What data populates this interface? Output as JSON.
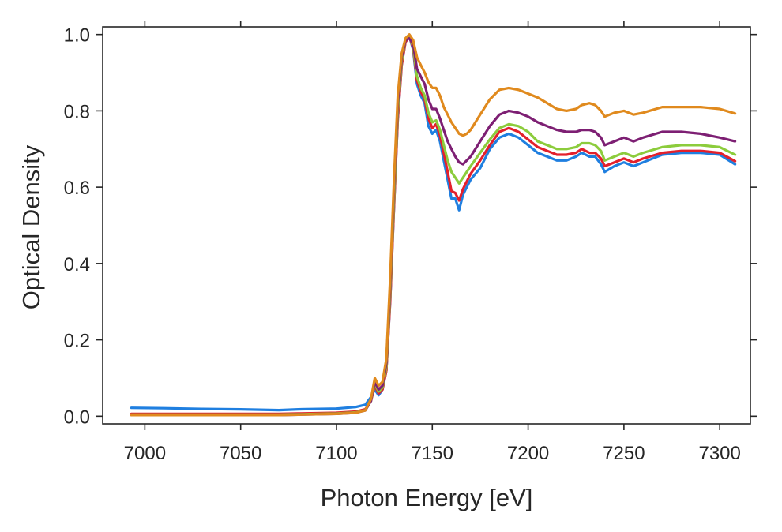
{
  "chart_data": {
    "type": "line",
    "title": "",
    "xlabel": "Photon Energy [eV]",
    "ylabel": "Optical Density",
    "xlim": [
      6978,
      7316
    ],
    "ylim": [
      -0.02,
      1.02
    ],
    "xticks": [
      7000,
      7050,
      7100,
      7150,
      7200,
      7250,
      7300
    ],
    "xtick_labels": [
      "7000",
      "7050",
      "7100",
      "7150",
      "7200",
      "7250",
      "7300"
    ],
    "yticks": [
      0.0,
      0.2,
      0.4,
      0.6,
      0.8,
      1.0
    ],
    "ytick_labels": [
      "0.0",
      "0.2",
      "0.4",
      "0.6",
      "0.8",
      "1.0"
    ],
    "grid": false,
    "legend": "none",
    "series": [
      {
        "name": "blue",
        "color": "#1f7fe0",
        "x": [
          6993,
          7010,
          7030,
          7050,
          7070,
          7080,
          7100,
          7110,
          7115,
          7118,
          7120,
          7122,
          7124,
          7126,
          7128,
          7130,
          7132,
          7134,
          7136,
          7138,
          7140,
          7142,
          7144,
          7146,
          7148,
          7150,
          7152,
          7154,
          7156,
          7158,
          7160,
          7162,
          7164,
          7166,
          7168,
          7170,
          7175,
          7180,
          7185,
          7190,
          7195,
          7200,
          7205,
          7210,
          7215,
          7220,
          7225,
          7228,
          7232,
          7235,
          7238,
          7240,
          7245,
          7250,
          7255,
          7260,
          7270,
          7280,
          7290,
          7300,
          7308
        ],
        "y": [
          0.022,
          0.021,
          0.019,
          0.018,
          0.016,
          0.018,
          0.02,
          0.024,
          0.03,
          0.05,
          0.07,
          0.055,
          0.07,
          0.12,
          0.3,
          0.55,
          0.78,
          0.92,
          0.98,
          0.995,
          0.96,
          0.87,
          0.84,
          0.82,
          0.76,
          0.74,
          0.75,
          0.72,
          0.67,
          0.62,
          0.57,
          0.57,
          0.54,
          0.58,
          0.6,
          0.62,
          0.65,
          0.7,
          0.73,
          0.74,
          0.73,
          0.71,
          0.69,
          0.68,
          0.67,
          0.67,
          0.68,
          0.69,
          0.68,
          0.68,
          0.66,
          0.64,
          0.655,
          0.665,
          0.655,
          0.665,
          0.685,
          0.69,
          0.69,
          0.685,
          0.66
        ]
      },
      {
        "name": "red",
        "color": "#e3202c",
        "x": [
          6993,
          7010,
          7030,
          7050,
          7070,
          7080,
          7100,
          7110,
          7115,
          7118,
          7120,
          7122,
          7124,
          7126,
          7128,
          7130,
          7132,
          7134,
          7136,
          7138,
          7140,
          7142,
          7144,
          7146,
          7148,
          7150,
          7152,
          7154,
          7156,
          7158,
          7160,
          7162,
          7164,
          7166,
          7168,
          7170,
          7175,
          7180,
          7185,
          7190,
          7195,
          7200,
          7205,
          7210,
          7215,
          7220,
          7225,
          7228,
          7232,
          7235,
          7238,
          7240,
          7245,
          7250,
          7255,
          7260,
          7270,
          7280,
          7290,
          7300,
          7308
        ],
        "y": [
          0.006,
          0.006,
          0.006,
          0.006,
          0.006,
          0.007,
          0.009,
          0.012,
          0.018,
          0.04,
          0.08,
          0.06,
          0.07,
          0.12,
          0.3,
          0.55,
          0.78,
          0.92,
          0.98,
          0.995,
          0.965,
          0.88,
          0.85,
          0.83,
          0.78,
          0.755,
          0.765,
          0.735,
          0.69,
          0.64,
          0.59,
          0.585,
          0.565,
          0.595,
          0.615,
          0.635,
          0.67,
          0.71,
          0.745,
          0.755,
          0.745,
          0.725,
          0.705,
          0.695,
          0.685,
          0.685,
          0.69,
          0.7,
          0.69,
          0.69,
          0.675,
          0.655,
          0.665,
          0.675,
          0.665,
          0.675,
          0.69,
          0.695,
          0.695,
          0.69,
          0.668
        ]
      },
      {
        "name": "green",
        "color": "#8ccc3c",
        "x": [
          6993,
          7010,
          7030,
          7050,
          7070,
          7080,
          7100,
          7110,
          7115,
          7118,
          7120,
          7122,
          7124,
          7126,
          7128,
          7130,
          7132,
          7134,
          7136,
          7138,
          7140,
          7142,
          7144,
          7146,
          7148,
          7150,
          7152,
          7154,
          7156,
          7158,
          7160,
          7162,
          7164,
          7166,
          7168,
          7170,
          7175,
          7180,
          7185,
          7190,
          7195,
          7200,
          7205,
          7210,
          7215,
          7220,
          7225,
          7228,
          7232,
          7235,
          7238,
          7240,
          7245,
          7250,
          7255,
          7260,
          7270,
          7280,
          7290,
          7300,
          7308
        ],
        "y": [
          0.004,
          0.004,
          0.004,
          0.004,
          0.004,
          0.005,
          0.007,
          0.01,
          0.016,
          0.04,
          0.085,
          0.065,
          0.075,
          0.13,
          0.32,
          0.57,
          0.8,
          0.93,
          0.985,
          0.995,
          0.97,
          0.89,
          0.86,
          0.84,
          0.795,
          0.77,
          0.775,
          0.75,
          0.71,
          0.67,
          0.64,
          0.625,
          0.61,
          0.625,
          0.64,
          0.655,
          0.69,
          0.725,
          0.755,
          0.765,
          0.76,
          0.745,
          0.72,
          0.71,
          0.7,
          0.7,
          0.705,
          0.715,
          0.715,
          0.71,
          0.695,
          0.67,
          0.68,
          0.69,
          0.68,
          0.69,
          0.705,
          0.71,
          0.71,
          0.705,
          0.685
        ]
      },
      {
        "name": "purple",
        "color": "#7d1f73",
        "x": [
          6993,
          7010,
          7030,
          7050,
          7070,
          7080,
          7100,
          7110,
          7115,
          7118,
          7120,
          7122,
          7124,
          7126,
          7128,
          7130,
          7132,
          7134,
          7136,
          7138,
          7140,
          7142,
          7144,
          7146,
          7148,
          7150,
          7152,
          7154,
          7156,
          7158,
          7160,
          7162,
          7164,
          7166,
          7168,
          7170,
          7175,
          7180,
          7185,
          7190,
          7195,
          7200,
          7205,
          7210,
          7215,
          7220,
          7225,
          7228,
          7232,
          7235,
          7238,
          7240,
          7245,
          7250,
          7255,
          7260,
          7270,
          7280,
          7290,
          7300,
          7308
        ],
        "y": [
          0.003,
          0.003,
          0.003,
          0.003,
          0.003,
          0.004,
          0.006,
          0.009,
          0.015,
          0.04,
          0.09,
          0.07,
          0.08,
          0.14,
          0.34,
          0.6,
          0.82,
          0.94,
          0.985,
          0.99,
          0.975,
          0.91,
          0.89,
          0.87,
          0.83,
          0.805,
          0.805,
          0.78,
          0.75,
          0.72,
          0.7,
          0.68,
          0.665,
          0.66,
          0.67,
          0.68,
          0.72,
          0.76,
          0.79,
          0.8,
          0.795,
          0.785,
          0.77,
          0.76,
          0.75,
          0.745,
          0.745,
          0.75,
          0.75,
          0.745,
          0.73,
          0.71,
          0.72,
          0.73,
          0.72,
          0.73,
          0.745,
          0.745,
          0.74,
          0.73,
          0.72
        ]
      },
      {
        "name": "orange",
        "color": "#e08a1e",
        "x": [
          6993,
          7010,
          7030,
          7050,
          7070,
          7080,
          7100,
          7110,
          7115,
          7118,
          7120,
          7122,
          7124,
          7126,
          7128,
          7130,
          7132,
          7134,
          7136,
          7138,
          7140,
          7142,
          7144,
          7146,
          7148,
          7150,
          7152,
          7154,
          7156,
          7158,
          7160,
          7162,
          7164,
          7166,
          7168,
          7170,
          7175,
          7180,
          7185,
          7190,
          7195,
          7200,
          7205,
          7210,
          7215,
          7220,
          7225,
          7228,
          7232,
          7235,
          7238,
          7240,
          7245,
          7250,
          7255,
          7260,
          7270,
          7280,
          7290,
          7300,
          7308
        ],
        "y": [
          0.003,
          0.003,
          0.003,
          0.003,
          0.003,
          0.004,
          0.006,
          0.009,
          0.015,
          0.045,
          0.1,
          0.08,
          0.09,
          0.15,
          0.36,
          0.62,
          0.84,
          0.95,
          0.99,
          1.0,
          0.985,
          0.94,
          0.92,
          0.9,
          0.875,
          0.86,
          0.86,
          0.84,
          0.81,
          0.79,
          0.77,
          0.755,
          0.74,
          0.735,
          0.74,
          0.75,
          0.79,
          0.83,
          0.855,
          0.86,
          0.855,
          0.845,
          0.835,
          0.82,
          0.805,
          0.8,
          0.805,
          0.815,
          0.82,
          0.815,
          0.8,
          0.785,
          0.795,
          0.8,
          0.79,
          0.795,
          0.81,
          0.81,
          0.81,
          0.805,
          0.793
        ]
      }
    ]
  }
}
